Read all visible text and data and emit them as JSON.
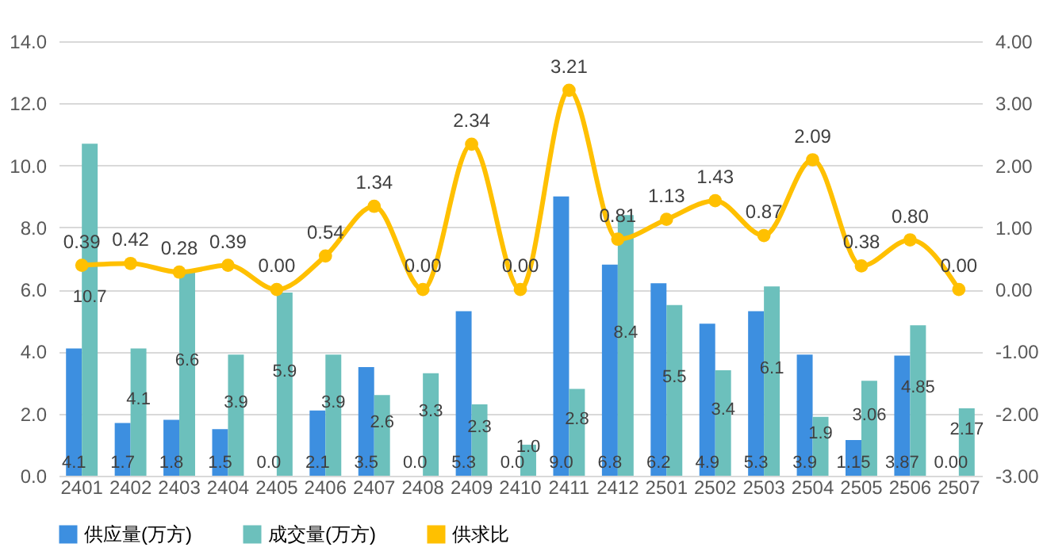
{
  "chart_data": {
    "type": "bar",
    "categories": [
      "2401",
      "2402",
      "2403",
      "2404",
      "2405",
      "2406",
      "2407",
      "2408",
      "2409",
      "2410",
      "2411",
      "2412",
      "2501",
      "2502",
      "2503",
      "2504",
      "2505",
      "2506",
      "2507"
    ],
    "series": [
      {
        "name": "供应量(万方)",
        "type": "bar",
        "color": "#3d8fe0",
        "values": [
          4.1,
          1.7,
          1.8,
          1.5,
          0.0,
          2.1,
          3.5,
          0.0,
          5.3,
          0.0,
          9.0,
          6.8,
          6.2,
          4.9,
          5.3,
          3.9,
          1.15,
          3.87,
          0.0
        ],
        "value_labels": [
          "4.1",
          "1.7",
          "1.8",
          "1.5",
          "0.0",
          "2.1",
          "3.5",
          "0.0",
          "5.3",
          "0.0",
          "9.0",
          "6.8",
          "6.2",
          "4.9",
          "5.3",
          "3.9",
          "1.15",
          "3.87",
          "0.00"
        ]
      },
      {
        "name": "成交量(万方)",
        "type": "bar",
        "color": "#6cc0bc",
        "values": [
          10.7,
          4.1,
          6.6,
          3.9,
          5.9,
          3.9,
          2.6,
          3.3,
          2.3,
          1.0,
          2.8,
          8.4,
          5.5,
          3.4,
          6.1,
          1.9,
          3.06,
          4.85,
          2.17
        ],
        "value_labels": [
          "10.7",
          "4.1",
          "6.6",
          "3.9",
          "5.9",
          "3.9",
          "2.6",
          "3.3",
          "2.3",
          "1.0",
          "2.8",
          "8.4",
          "5.5",
          "3.4",
          "6.1",
          "1.9",
          "3.06",
          "4.85",
          "2.17"
        ]
      },
      {
        "name": "供求比",
        "type": "line",
        "axis": "y2",
        "color": "#ffc000",
        "values": [
          0.39,
          0.42,
          0.28,
          0.39,
          0.0,
          0.54,
          1.34,
          0.0,
          2.34,
          0.0,
          3.21,
          0.81,
          1.13,
          1.43,
          0.87,
          2.09,
          0.38,
          0.8,
          0.0
        ],
        "value_labels": [
          "0.39",
          "0.42",
          "0.28",
          "0.39",
          "0.00",
          "0.54",
          "1.34",
          "0.00",
          "2.34",
          "0.00",
          "3.21",
          "0.81",
          "1.13",
          "1.43",
          "0.87",
          "2.09",
          "0.38",
          "0.80",
          "0.00"
        ]
      }
    ],
    "ylim": [
      0,
      14
    ],
    "yticks": [
      {
        "value": 0,
        "label": "0.0"
      },
      {
        "value": 2,
        "label": "2.0"
      },
      {
        "value": 4,
        "label": "4.0"
      },
      {
        "value": 6,
        "label": "6.0"
      },
      {
        "value": 8,
        "label": "8.0"
      },
      {
        "value": 10,
        "label": "10.0"
      },
      {
        "value": 12,
        "label": "12.0"
      },
      {
        "value": 14,
        "label": "14.0"
      }
    ],
    "y2lim": [
      -3,
      4
    ],
    "y2ticks": [
      {
        "value": -3,
        "label": "-3.00"
      },
      {
        "value": -2,
        "label": "-2.00"
      },
      {
        "value": -1,
        "label": "-1.00"
      },
      {
        "value": 0,
        "label": "0.00"
      },
      {
        "value": 1,
        "label": "1.00"
      },
      {
        "value": 2,
        "label": "2.00"
      },
      {
        "value": 3,
        "label": "3.00"
      },
      {
        "value": 4,
        "label": "4.00"
      }
    ],
    "grid": "y",
    "legend": "bottom",
    "marker": "circle",
    "line_style": "solid"
  }
}
